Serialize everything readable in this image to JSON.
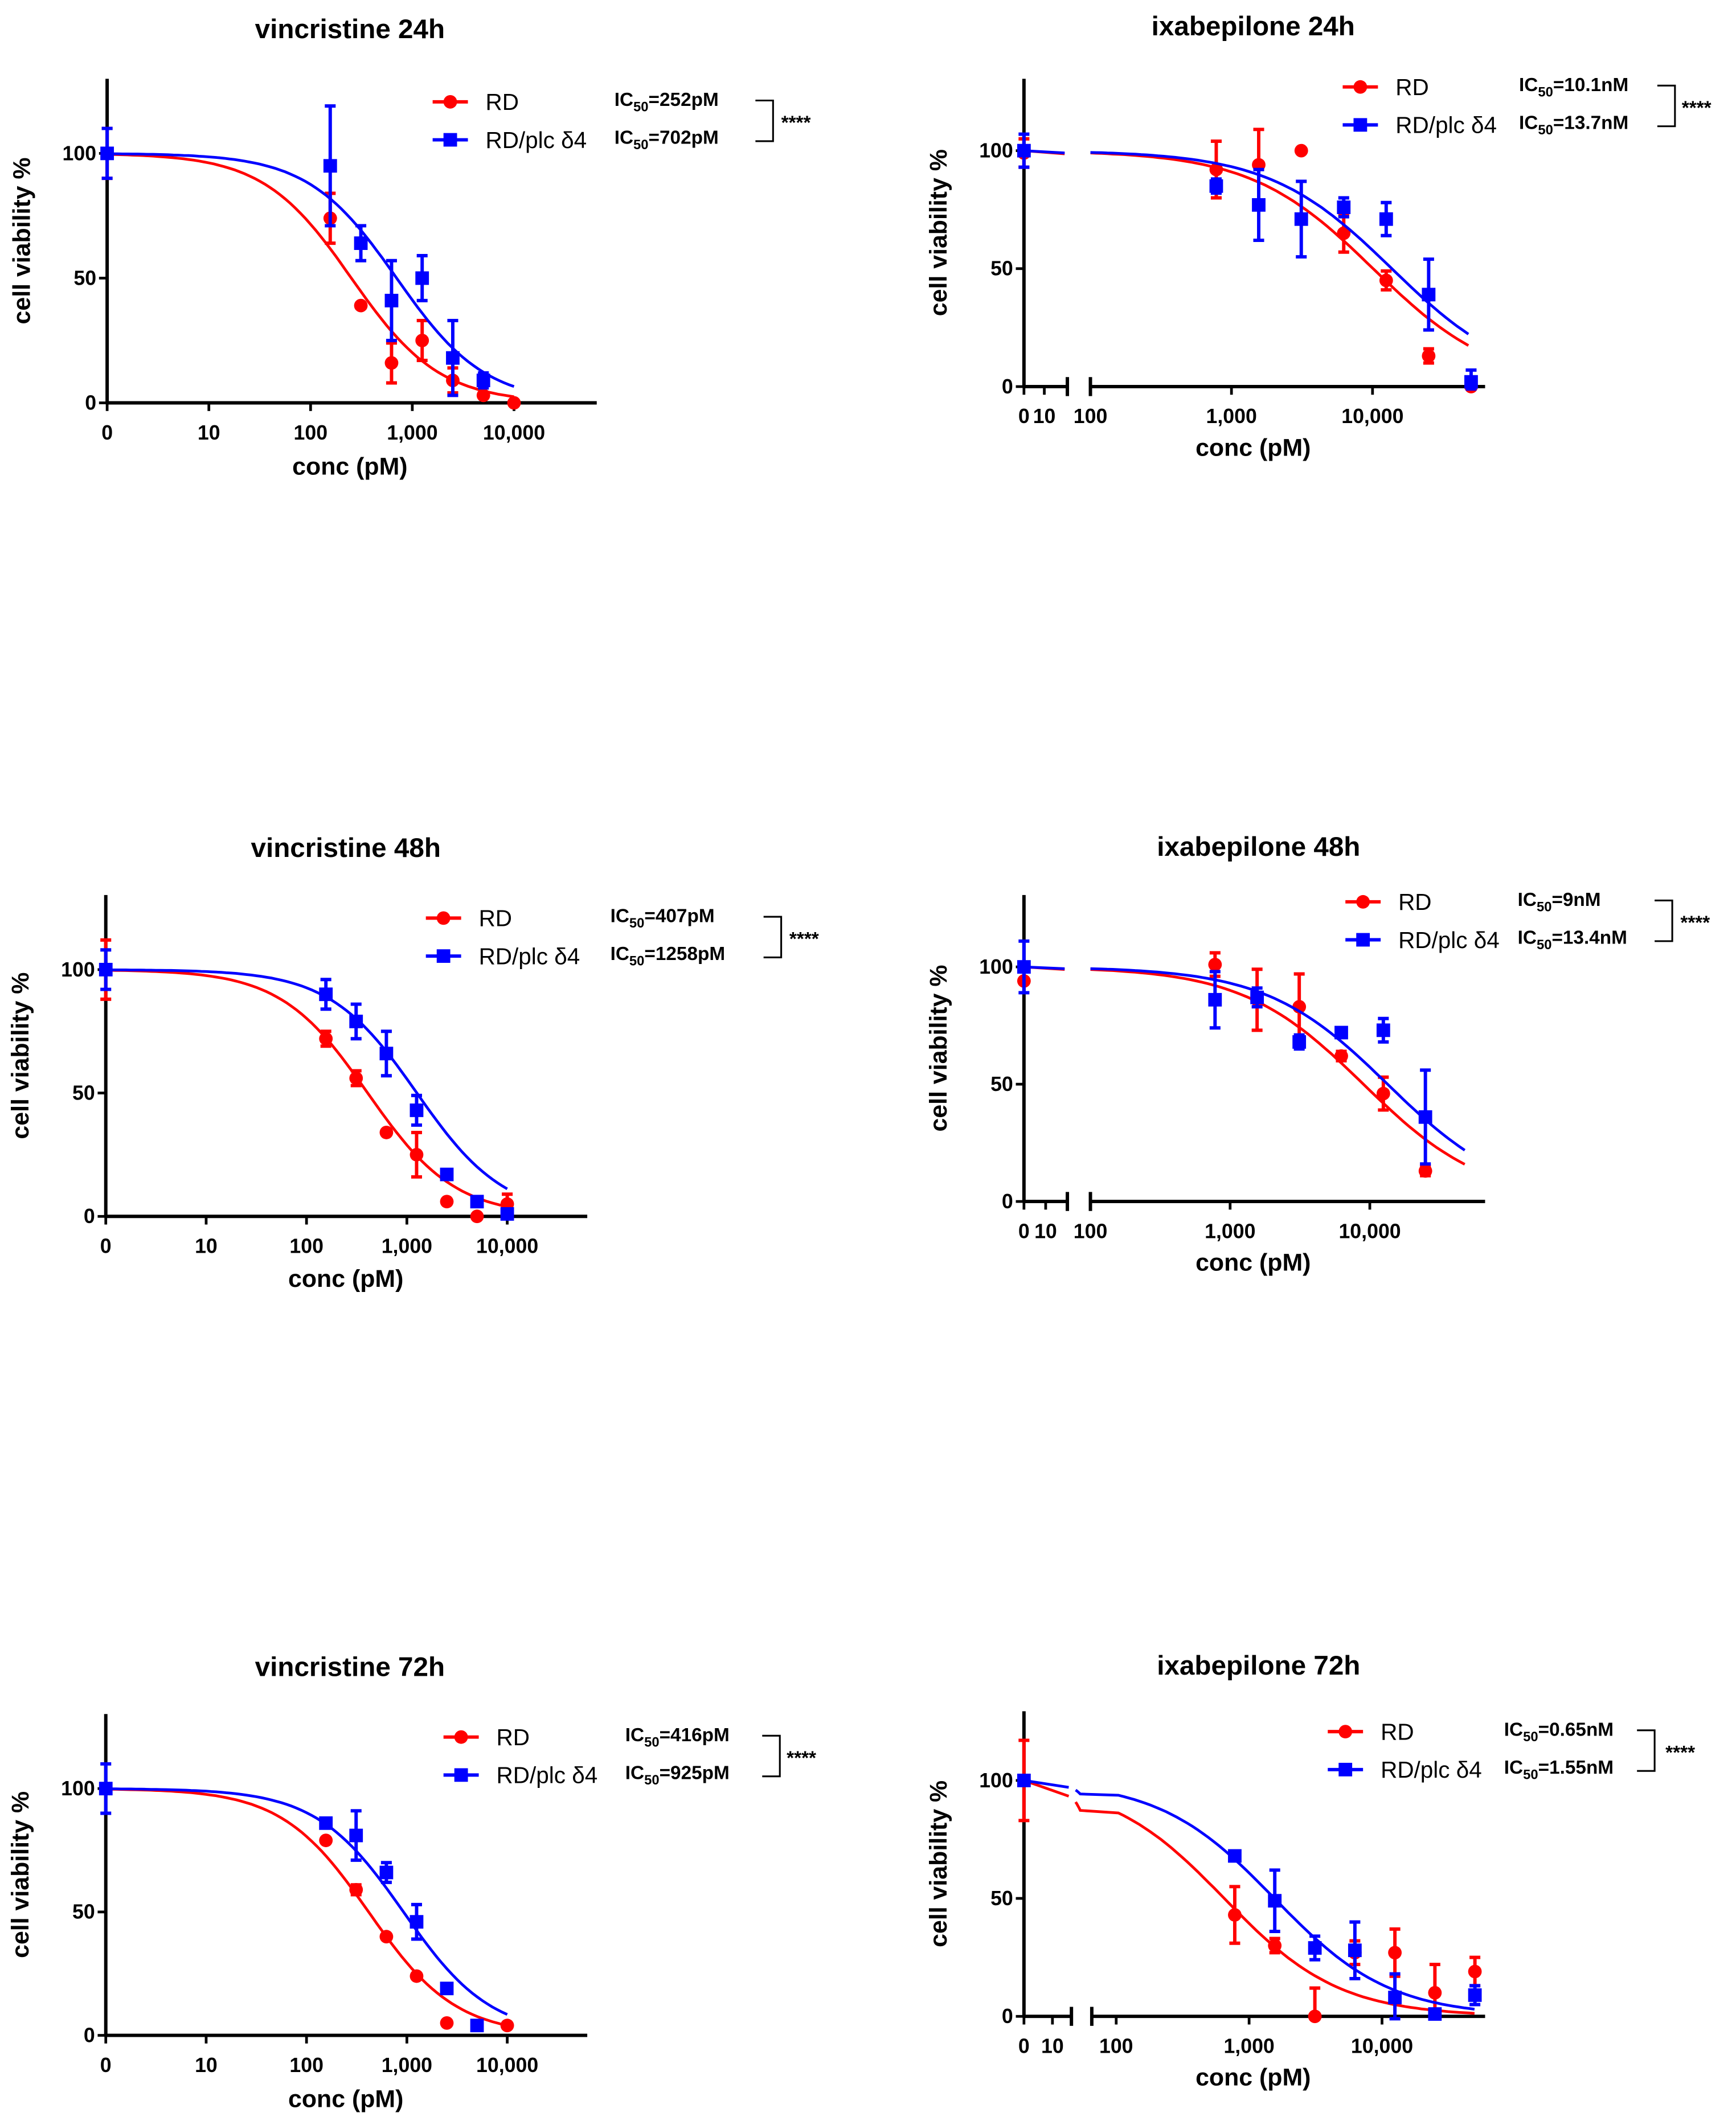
{
  "colors": {
    "RD": "#ff0000",
    "RD/plc δ4": "#0000ff",
    "axis": "#000000"
  },
  "chart_data": [
    {
      "type": "scatter",
      "title": "vincristine 24h",
      "xlabel": "conc (pM)",
      "ylabel": "cell viability %",
      "x_scale": "log",
      "x_ticks": [
        "0",
        "10",
        "100",
        "1,000",
        "10,000"
      ],
      "y_ticks": [
        "0",
        "50",
        "100"
      ],
      "ylim": [
        0,
        130
      ],
      "legend": "top-right",
      "significance": "****",
      "fit": "sigmoidal dose-response",
      "series": [
        {
          "name": "RD",
          "marker": "circle",
          "ic50_label": "=252pM",
          "ic50_pM": 252,
          "hill": 1,
          "fit_range": [
            0,
            10000
          ],
          "points": [
            [
              0,
              100,
              10
            ],
            [
              156,
              74,
              10
            ],
            [
              312,
              39,
              0
            ],
            [
              625,
              16,
              8
            ],
            [
              1250,
              25,
              8
            ],
            [
              2500,
              9,
              5
            ],
            [
              5000,
              3,
              0
            ],
            [
              10000,
              0,
              0
            ]
          ]
        },
        {
          "name": "RD/plc δ4",
          "marker": "square",
          "ic50_label": "=702pM",
          "ic50_pM": 702,
          "hill": 1,
          "fit_range": [
            0,
            10000
          ],
          "points": [
            [
              0,
              100,
              10
            ],
            [
              156,
              95,
              24
            ],
            [
              312,
              64,
              7
            ],
            [
              625,
              41,
              16
            ],
            [
              1250,
              50,
              9
            ],
            [
              2500,
              18,
              15
            ],
            [
              5000,
              9,
              3
            ]
          ]
        }
      ]
    },
    {
      "type": "scatter",
      "title": "ixabepilone 24h",
      "xlabel": "conc (pM)",
      "ylabel": "cell viability %",
      "x_scale": "log (broken axis)",
      "x_ticks": [
        "0",
        "10",
        "100",
        "1,000",
        "10,000"
      ],
      "y_ticks": [
        "0",
        "50",
        "100"
      ],
      "ylim": [
        0,
        130
      ],
      "legend": "top-right",
      "significance": "****",
      "fit": "sigmoidal dose-response",
      "series": [
        {
          "name": "RD",
          "marker": "circle",
          "ic50_label": "=10.1nM",
          "ic50_pM": 10100,
          "hill": 1,
          "fit_range": [
            0,
            50000
          ],
          "points": [
            [
              0,
              99,
              6
            ],
            [
              780,
              92,
              12
            ],
            [
              1560,
              94,
              15
            ],
            [
              3125,
              100,
              0
            ],
            [
              6250,
              65,
              8
            ],
            [
              12500,
              45,
              4
            ],
            [
              25000,
              13,
              3
            ],
            [
              50000,
              0,
              0
            ]
          ]
        },
        {
          "name": "RD/plc δ4",
          "marker": "square",
          "ic50_label": "=13.7nM",
          "ic50_pM": 13700,
          "hill": 1,
          "fit_range": [
            0,
            50000
          ],
          "points": [
            [
              0,
              100,
              7
            ],
            [
              780,
              85,
              3
            ],
            [
              1560,
              77,
              15
            ],
            [
              3125,
              71,
              16
            ],
            [
              6250,
              76,
              4
            ],
            [
              12500,
              71,
              7
            ],
            [
              25000,
              39,
              15
            ],
            [
              50000,
              2,
              5
            ]
          ]
        }
      ]
    },
    {
      "type": "scatter",
      "title": "vincristine 48h",
      "xlabel": "conc (pM)",
      "ylabel": "cell viability %",
      "x_scale": "log",
      "x_ticks": [
        "0",
        "10",
        "100",
        "1,000",
        "10,000"
      ],
      "y_ticks": [
        "0",
        "50",
        "100"
      ],
      "ylim": [
        0,
        130
      ],
      "legend": "top-right",
      "significance": "****",
      "fit": "sigmoidal dose-response",
      "series": [
        {
          "name": "RD",
          "marker": "circle",
          "ic50_label": "=407pM",
          "ic50_pM": 407,
          "hill": 1,
          "fit_range": [
            0,
            10000
          ],
          "points": [
            [
              0,
              100,
              12
            ],
            [
              156,
              72,
              3
            ],
            [
              312,
              56,
              3
            ],
            [
              625,
              34,
              0
            ],
            [
              1250,
              25,
              9
            ],
            [
              2500,
              6,
              0
            ],
            [
              5000,
              0,
              0
            ],
            [
              10000,
              5,
              4
            ]
          ]
        },
        {
          "name": "RD/plc δ4",
          "marker": "square",
          "ic50_label": "=1258pM",
          "ic50_pM": 1258,
          "hill": 1,
          "fit_range": [
            0,
            10000
          ],
          "points": [
            [
              0,
              100,
              8
            ],
            [
              156,
              90,
              6
            ],
            [
              312,
              79,
              7
            ],
            [
              625,
              66,
              9
            ],
            [
              1250,
              43,
              6
            ],
            [
              2500,
              17,
              0
            ],
            [
              5000,
              6,
              2
            ],
            [
              10000,
              1,
              2
            ]
          ]
        }
      ]
    },
    {
      "type": "scatter",
      "title": "ixabepilone 48h",
      "xlabel": "conc (pM)",
      "ylabel": "cell viability %",
      "x_scale": "log (broken axis)",
      "x_ticks": [
        "0",
        "10",
        "100",
        "1,000",
        "10,000"
      ],
      "y_ticks": [
        "0",
        "50",
        "100"
      ],
      "ylim": [
        0,
        130
      ],
      "legend": "top-right",
      "significance": "****",
      "fit": "sigmoidal dose-response",
      "series": [
        {
          "name": "RD",
          "marker": "circle",
          "ic50_label": "=9nM",
          "ic50_pM": 9000,
          "hill": 1,
          "fit_range": [
            0,
            50000
          ],
          "points": [
            [
              0,
              94,
              0
            ],
            [
              780,
              101,
              5
            ],
            [
              1560,
              86,
              13
            ],
            [
              3125,
              83,
              14
            ],
            [
              6250,
              62,
              2
            ],
            [
              12500,
              46,
              7
            ],
            [
              25000,
              13,
              2
            ]
          ]
        },
        {
          "name": "RD/plc δ4",
          "marker": "square",
          "ic50_label": "=13.4nM",
          "ic50_pM": 13400,
          "hill": 1,
          "fit_range": [
            0,
            50000
          ],
          "points": [
            [
              0,
              100,
              11
            ],
            [
              780,
              86,
              12
            ],
            [
              1560,
              87,
              4
            ],
            [
              3125,
              68,
              3
            ],
            [
              6250,
              72,
              2
            ],
            [
              12500,
              73,
              5
            ],
            [
              25000,
              36,
              20
            ]
          ]
        }
      ]
    },
    {
      "type": "scatter",
      "title": "vincristine 72h",
      "xlabel": "conc (pM)",
      "ylabel": "cell viability %",
      "x_scale": "log",
      "x_ticks": [
        "0",
        "10",
        "100",
        "1,000",
        "10,000"
      ],
      "y_ticks": [
        "0",
        "50",
        "100"
      ],
      "ylim": [
        0,
        130
      ],
      "legend": "top-right",
      "significance": "****",
      "fit": "sigmoidal dose-response",
      "series": [
        {
          "name": "RD",
          "marker": "circle",
          "ic50_label": "=416pM",
          "ic50_pM": 416,
          "hill": 1,
          "fit_range": [
            0,
            10000
          ],
          "points": [
            [
              0,
              100,
              0
            ],
            [
              156,
              79,
              0
            ],
            [
              312,
              59,
              2
            ],
            [
              625,
              40,
              0
            ],
            [
              1250,
              24,
              0
            ],
            [
              2500,
              5,
              0
            ],
            [
              10000,
              4,
              0
            ]
          ]
        },
        {
          "name": "RD/plc δ4",
          "marker": "square",
          "ic50_label": "=925pM",
          "ic50_pM": 925,
          "hill": 1,
          "fit_range": [
            0,
            10000
          ],
          "points": [
            [
              0,
              100,
              10
            ],
            [
              156,
              86,
              2
            ],
            [
              312,
              81,
              10
            ],
            [
              625,
              66,
              4
            ],
            [
              1250,
              46,
              7
            ],
            [
              2500,
              19,
              0
            ],
            [
              5000,
              4,
              0
            ]
          ]
        }
      ]
    },
    {
      "type": "scatter",
      "title": "ixabepilone 72h",
      "xlabel": "conc (pM)",
      "ylabel": "cell viability %",
      "x_scale": "log (broken axis)",
      "x_ticks": [
        "0",
        "10",
        "100",
        "1,000",
        "10,000"
      ],
      "y_ticks": [
        "0",
        "50",
        "100"
      ],
      "ylim": [
        0,
        130
      ],
      "legend": "top-right",
      "significance": "****",
      "fit": "sigmoidal dose-response",
      "series": [
        {
          "name": "RD",
          "marker": "circle",
          "ic50_label": "=0.65nM",
          "ic50_pM": 650,
          "hill": 1,
          "fit_range": [
            0,
            50000
          ],
          "points": [
            [
              0,
              100,
              17
            ],
            [
              780,
              43,
              12
            ],
            [
              1560,
              30,
              3
            ],
            [
              3125,
              0,
              12
            ],
            [
              6250,
              27,
              5
            ],
            [
              12500,
              27,
              10
            ],
            [
              25000,
              10,
              12
            ],
            [
              50000,
              19,
              6
            ]
          ]
        },
        {
          "name": "RD/plc δ4",
          "marker": "square",
          "ic50_label": "=1.55nM",
          "ic50_pM": 1550,
          "hill": 1,
          "fit_range": [
            0,
            50000
          ],
          "points": [
            [
              0,
              100,
              0
            ],
            [
              780,
              68,
              2
            ],
            [
              1560,
              49,
              13
            ],
            [
              3125,
              29,
              5
            ],
            [
              6250,
              28,
              12
            ],
            [
              12500,
              8,
              10
            ],
            [
              25000,
              1,
              0
            ],
            [
              50000,
              9,
              4
            ]
          ]
        }
      ]
    }
  ]
}
